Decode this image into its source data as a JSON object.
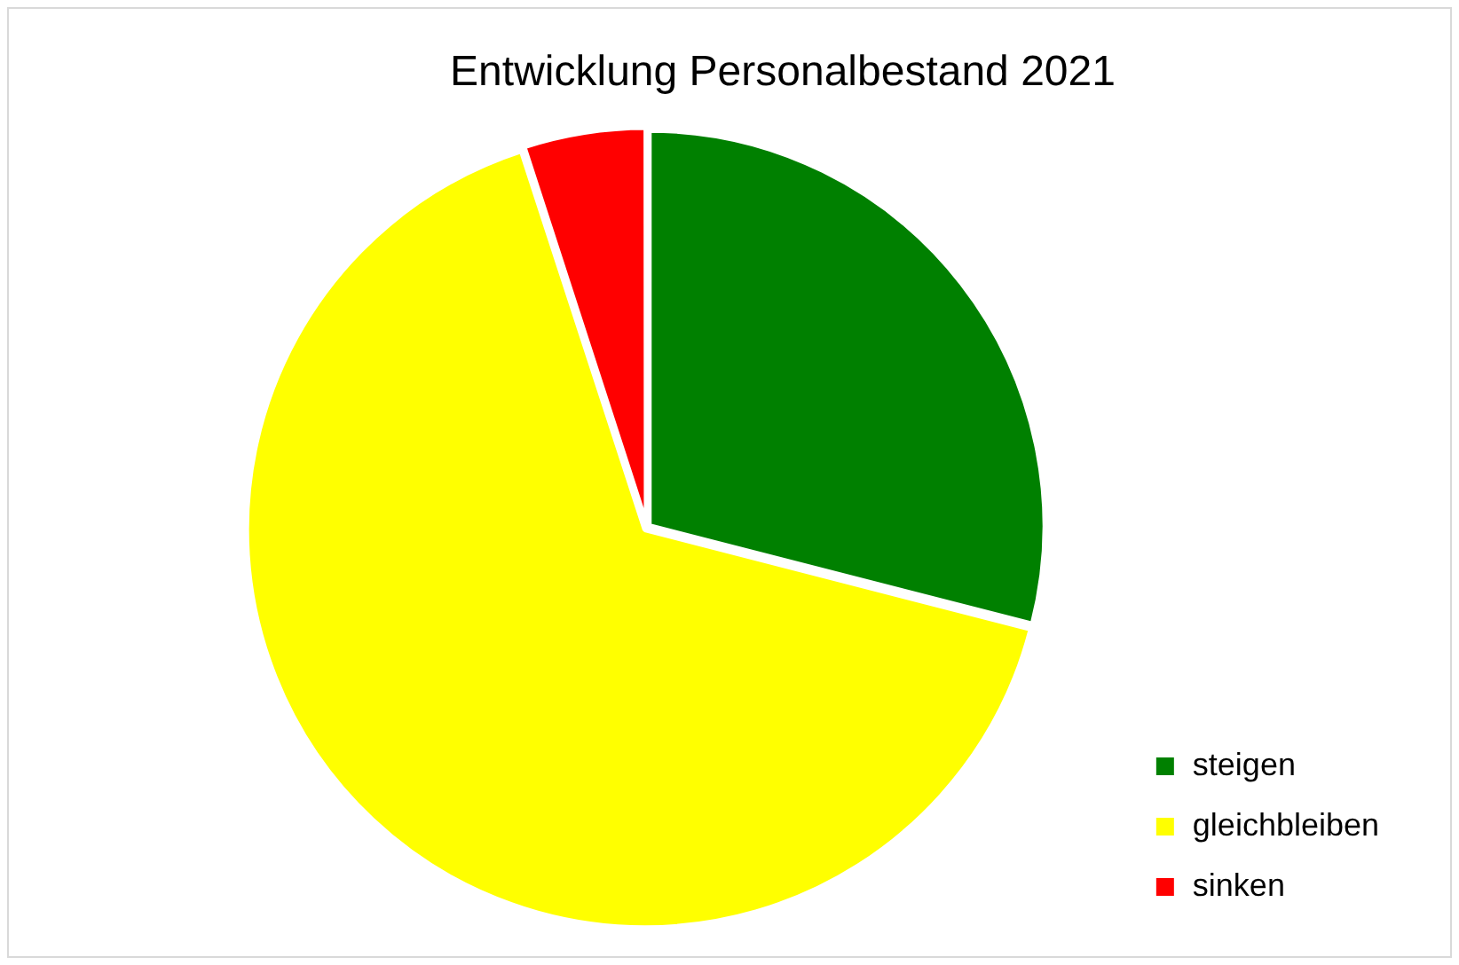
{
  "chart_data": {
    "type": "pie",
    "title": "Entwicklung Personalbestand 2021",
    "categories": [
      "steigen",
      "gleichbleiben",
      "sinken"
    ],
    "values": [
      29,
      66,
      5
    ],
    "colors": [
      "#008000",
      "#ffff00",
      "#ff0000"
    ],
    "legend": "right"
  }
}
